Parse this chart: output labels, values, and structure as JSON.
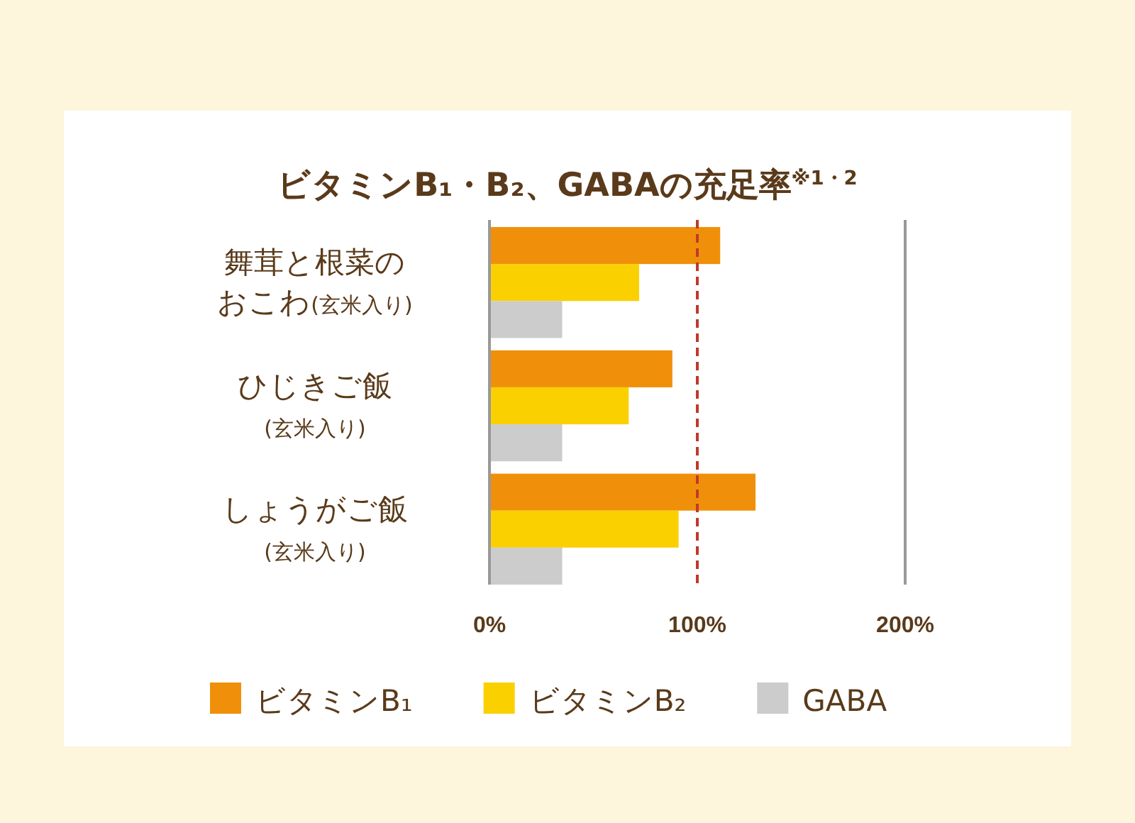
{
  "chart_data": {
    "type": "bar",
    "orientation": "horizontal",
    "title": "ビタミンB₁・B₂、GABAの充足率$^{※1・2}$",
    "categories": [
      "舞茸と根菜のおこわ(玄米入り)",
      "ひじきご飯(玄米入り)",
      "しょうがご飯(玄米入り)"
    ],
    "series": [
      {
        "name": "ビタミンB₁",
        "color": "#f0900a",
        "values": [
          111,
          88,
          128
        ]
      },
      {
        "name": "ビタミンB₂",
        "color": "#fbd000",
        "values": [
          72,
          67,
          91
        ]
      },
      {
        "name": "GABA",
        "color": "#cccccc",
        "values": [
          35,
          35,
          35
        ]
      }
    ],
    "xlim": [
      0,
      200
    ],
    "xticks": [
      {
        "value": 0,
        "label": "0%"
      },
      {
        "value": 100,
        "label": "100%"
      },
      {
        "value": 200,
        "label": "200%"
      }
    ],
    "legend": "bottom",
    "ref_lines": [
      {
        "axis": "x",
        "value": 100,
        "color": "#c0392b",
        "line_style": "dashed"
      },
      {
        "axis": "x",
        "value": 200,
        "color": "#999999",
        "line_style": "solid"
      }
    ]
  }
}
